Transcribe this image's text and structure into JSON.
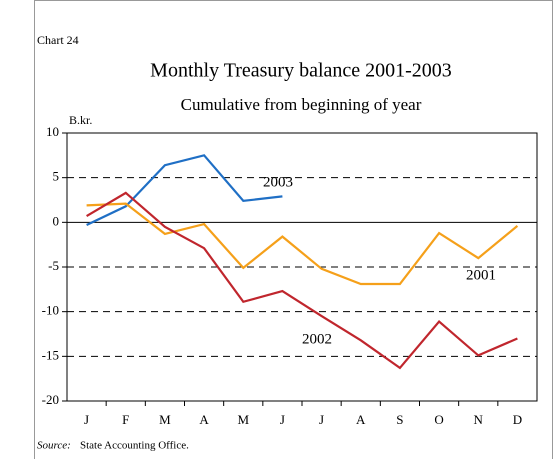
{
  "chart_data": {
    "type": "line",
    "chart_label": "Chart 24",
    "title": "Monthly Treasury balance 2001-2003",
    "subtitle": "Cumulative from beginning of year",
    "y_unit": "B.kr.",
    "source_label": "Source:",
    "source": "State Accounting Office.",
    "categories": [
      "J",
      "F",
      "M",
      "A",
      "M",
      "J",
      "J",
      "A",
      "S",
      "O",
      "N",
      "D"
    ],
    "series": [
      {
        "name": "2003",
        "color": "#1f6fc5",
        "values": [
          -0.3,
          1.8,
          6.4,
          7.5,
          2.4,
          2.9,
          null,
          null,
          null,
          null,
          null,
          null
        ]
      },
      {
        "name": "2001",
        "color": "#f5a01a",
        "values": [
          1.9,
          2.1,
          -1.3,
          -0.2,
          -5.1,
          -1.6,
          -5.2,
          -6.9,
          -6.9,
          -1.2,
          -4.0,
          -0.4
        ]
      },
      {
        "name": "2002",
        "color": "#c0262d",
        "values": [
          0.7,
          3.3,
          -0.5,
          -2.9,
          -8.9,
          -7.7,
          -10.5,
          -13.2,
          -16.3,
          -11.1,
          -14.9,
          -13.0
        ]
      }
    ],
    "ylim": [
      -20,
      10
    ],
    "yticks": [
      10,
      5,
      0,
      -5,
      -10,
      -15,
      -20
    ],
    "grid": true
  }
}
